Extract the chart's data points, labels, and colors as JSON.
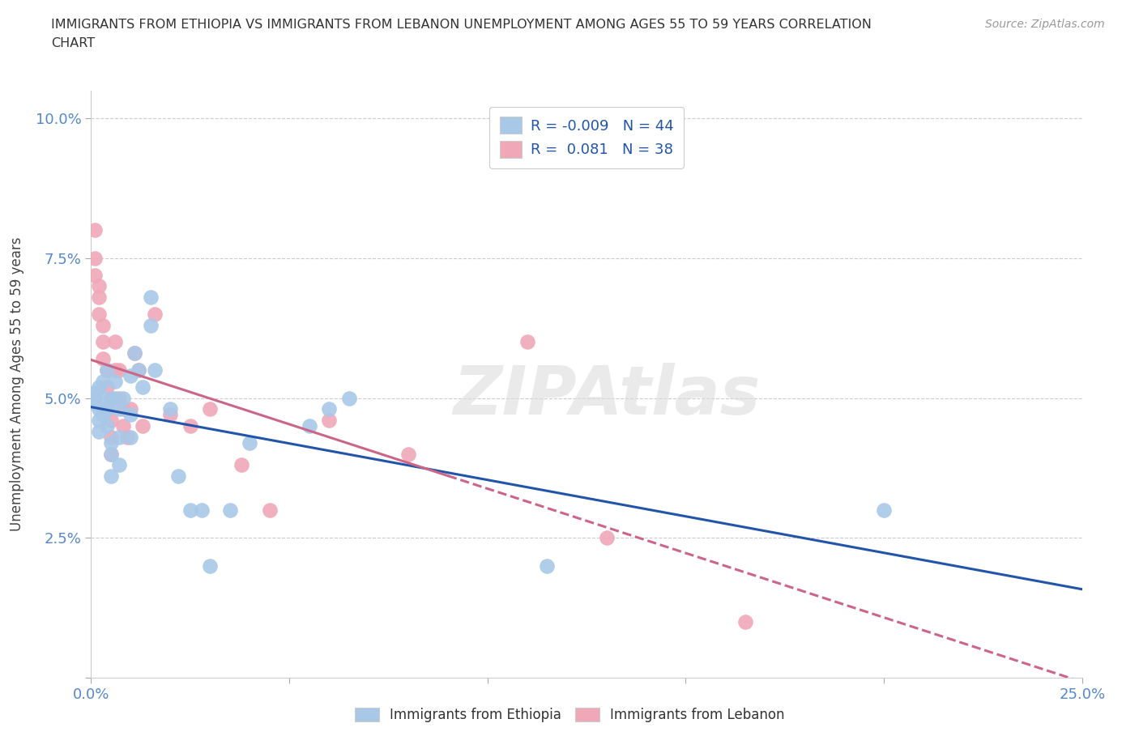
{
  "title_line1": "IMMIGRANTS FROM ETHIOPIA VS IMMIGRANTS FROM LEBANON UNEMPLOYMENT AMONG AGES 55 TO 59 YEARS CORRELATION",
  "title_line2": "CHART",
  "source": "Source: ZipAtlas.com",
  "ylabel_label": "Unemployment Among Ages 55 to 59 years",
  "xlim": [
    0.0,
    0.25
  ],
  "ylim": [
    0.0,
    0.105
  ],
  "xticks": [
    0.0,
    0.05,
    0.1,
    0.15,
    0.2,
    0.25
  ],
  "yticks": [
    0.0,
    0.025,
    0.05,
    0.075,
    0.1
  ],
  "xticklabels": [
    "0.0%",
    "",
    "",
    "",
    "",
    "25.0%"
  ],
  "yticklabels": [
    "",
    "2.5%",
    "5.0%",
    "7.5%",
    "10.0%"
  ],
  "ethiopia_color": "#a8c8e8",
  "lebanon_color": "#f0a8b8",
  "ethiopia_edge_color": "#8ab0d0",
  "lebanon_edge_color": "#d88898",
  "ethiopia_line_color": "#2255aa",
  "lebanon_line_color": "#cc6688",
  "ethiopia_R": -0.009,
  "ethiopia_N": 44,
  "lebanon_R": 0.081,
  "lebanon_N": 38,
  "watermark": "ZIPAtlas",
  "background_color": "#ffffff",
  "grid_color": "#cccccc",
  "tick_color": "#5588cc",
  "title_color": "#333333",
  "ylabel_color": "#444444",
  "ethiopia_x": [
    0.001,
    0.001,
    0.001,
    0.002,
    0.002,
    0.002,
    0.002,
    0.003,
    0.003,
    0.003,
    0.004,
    0.004,
    0.004,
    0.005,
    0.005,
    0.005,
    0.005,
    0.006,
    0.006,
    0.007,
    0.007,
    0.007,
    0.008,
    0.01,
    0.01,
    0.01,
    0.011,
    0.012,
    0.013,
    0.015,
    0.015,
    0.016,
    0.02,
    0.022,
    0.025,
    0.028,
    0.03,
    0.035,
    0.04,
    0.055,
    0.06,
    0.065,
    0.115,
    0.2
  ],
  "ethiopia_y": [
    0.05,
    0.051,
    0.049,
    0.052,
    0.048,
    0.046,
    0.044,
    0.05,
    0.053,
    0.047,
    0.055,
    0.045,
    0.048,
    0.05,
    0.042,
    0.04,
    0.036,
    0.05,
    0.053,
    0.048,
    0.043,
    0.038,
    0.05,
    0.054,
    0.047,
    0.043,
    0.058,
    0.055,
    0.052,
    0.068,
    0.063,
    0.055,
    0.048,
    0.036,
    0.03,
    0.03,
    0.02,
    0.03,
    0.042,
    0.045,
    0.048,
    0.05,
    0.02,
    0.03
  ],
  "lebanon_x": [
    0.001,
    0.001,
    0.001,
    0.002,
    0.002,
    0.002,
    0.003,
    0.003,
    0.003,
    0.004,
    0.004,
    0.004,
    0.005,
    0.005,
    0.005,
    0.005,
    0.006,
    0.006,
    0.007,
    0.007,
    0.008,
    0.008,
    0.009,
    0.01,
    0.011,
    0.012,
    0.013,
    0.016,
    0.02,
    0.025,
    0.03,
    0.038,
    0.045,
    0.06,
    0.08,
    0.11,
    0.13,
    0.165
  ],
  "lebanon_y": [
    0.08,
    0.075,
    0.072,
    0.07,
    0.068,
    0.065,
    0.063,
    0.06,
    0.057,
    0.055,
    0.052,
    0.048,
    0.05,
    0.046,
    0.043,
    0.04,
    0.06,
    0.055,
    0.055,
    0.05,
    0.048,
    0.045,
    0.043,
    0.048,
    0.058,
    0.055,
    0.045,
    0.065,
    0.047,
    0.045,
    0.048,
    0.038,
    0.03,
    0.046,
    0.04,
    0.06,
    0.025,
    0.01
  ]
}
